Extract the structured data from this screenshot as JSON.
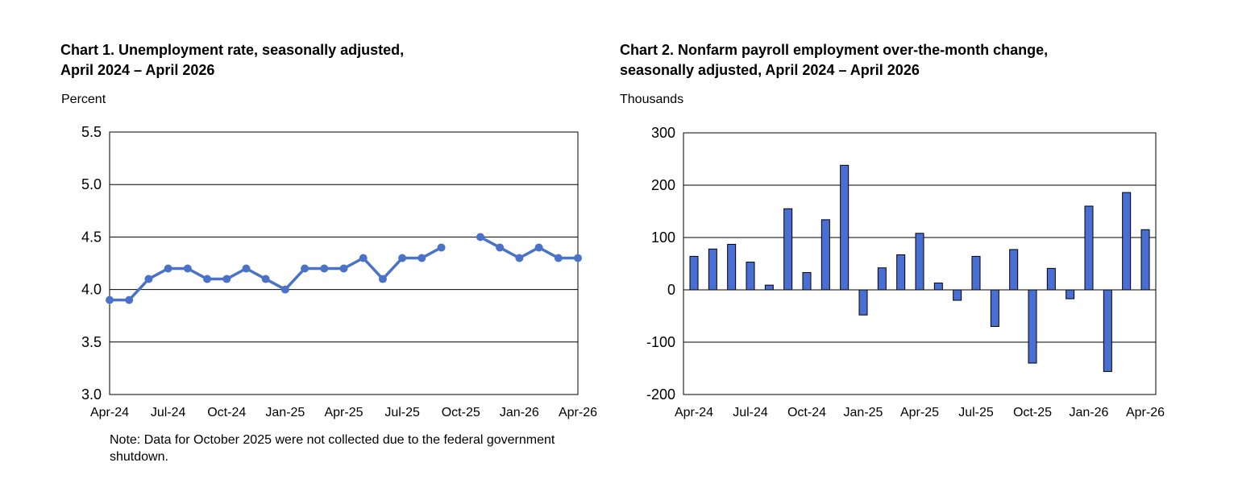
{
  "chart_data": [
    {
      "type": "line",
      "title": "Chart 1. Unemployment rate, seasonally adjusted, April 2024 – April 2026",
      "unit_label": "Percent",
      "xlabel": "",
      "ylabel": "Percent",
      "ylim": [
        3.0,
        5.5
      ],
      "yticks": [
        "5.5",
        "5.0",
        "4.5",
        "4.0",
        "3.5",
        "3.0"
      ],
      "grid": true,
      "tick_labels": [
        "Apr-24",
        "Jul-24",
        "Oct-24",
        "Jan-25",
        "Apr-25",
        "Jul-25",
        "Oct-25",
        "Jan-26",
        "Apr-26"
      ],
      "categories": [
        "2024-04",
        "2024-05",
        "2024-06",
        "2024-07",
        "2024-08",
        "2024-09",
        "2024-10",
        "2024-11",
        "2024-12",
        "2025-01",
        "2025-02",
        "2025-03",
        "2025-04",
        "2025-05",
        "2025-06",
        "2025-07",
        "2025-08",
        "2025-09",
        "2025-10",
        "2025-11",
        "2025-12",
        "2026-01",
        "2026-02",
        "2026-03",
        "2026-04"
      ],
      "series": [
        {
          "values": [
            3.9,
            3.9,
            4.1,
            4.2,
            4.2,
            4.1,
            4.1,
            4.2,
            4.1,
            4.0,
            4.2,
            4.2,
            4.2,
            4.3,
            4.1,
            4.3,
            4.3,
            4.4,
            null,
            4.5,
            4.4,
            4.3,
            4.4,
            4.3,
            4.3
          ]
        }
      ],
      "color": "#4a72c8",
      "note": "Note: Data for October 2025 were not collected due to the federal government shutdown."
    },
    {
      "type": "bar",
      "title": "Chart 2. Nonfarm payroll employment over-the-month change, seasonally adjusted, April 2024 – April 2026",
      "unit_label": "Thousands",
      "xlabel": "",
      "ylabel": "Thousands",
      "ylim": [
        -200,
        300
      ],
      "yticks": [
        "300",
        "200",
        "100",
        "0",
        "-100",
        "-200"
      ],
      "grid": true,
      "tick_labels": [
        "Apr-24",
        "Jul-24",
        "Oct-24",
        "Jan-25",
        "Apr-25",
        "Jul-25",
        "Oct-25",
        "Jan-26",
        "Apr-26"
      ],
      "categories": [
        "2024-04",
        "2024-05",
        "2024-06",
        "2024-07",
        "2024-08",
        "2024-09",
        "2024-10",
        "2024-11",
        "2024-12",
        "2025-01",
        "2025-02",
        "2025-03",
        "2025-04",
        "2025-05",
        "2025-06",
        "2025-07",
        "2025-08",
        "2025-09",
        "2025-10",
        "2025-11",
        "2025-12",
        "2026-01",
        "2026-02",
        "2026-03",
        "2026-04"
      ],
      "series": [
        {
          "values": [
            64,
            78,
            87,
            53,
            9,
            155,
            33,
            134,
            238,
            -48,
            42,
            67,
            108,
            13,
            -20,
            64,
            -70,
            77,
            -140,
            41,
            -17,
            160,
            -156,
            186,
            115
          ]
        }
      ],
      "color": "#4a6fd4"
    }
  ]
}
